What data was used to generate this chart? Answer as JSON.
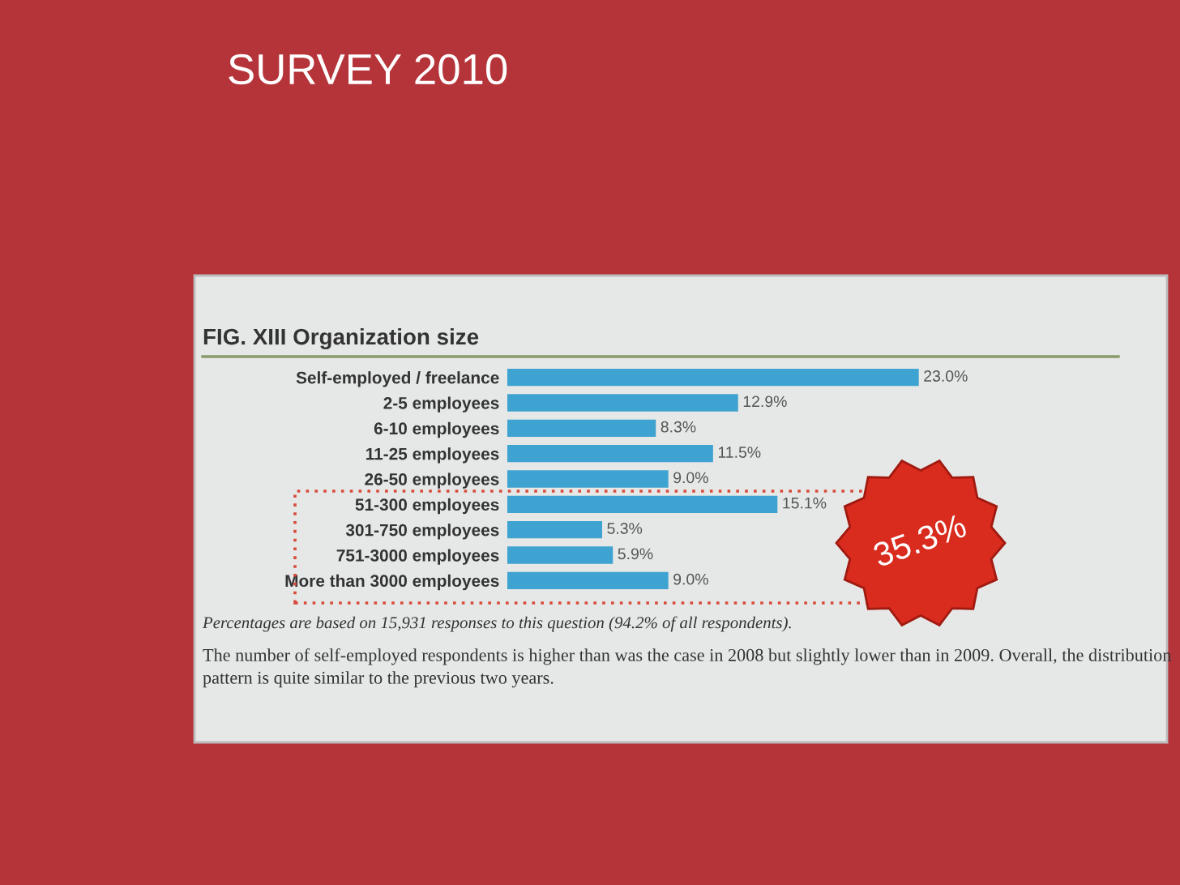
{
  "chart_data": {
    "type": "bar",
    "orientation": "horizontal",
    "title": "SURVEY 2010",
    "subtitle": "FIG. XIII Organization size",
    "categories": [
      "Self-employed / freelance",
      "2-5 employees",
      "6-10 employees",
      "11-25 employees",
      "26-50 employees",
      "51-300 employees",
      "301-750 employees",
      "751-3000 employees",
      "More than 3000 employees"
    ],
    "values": [
      23.0,
      12.9,
      8.3,
      11.5,
      9.0,
      15.1,
      5.3,
      5.9,
      9.0
    ],
    "value_labels": [
      "23.0%",
      "12.9%",
      "8.3%",
      "11.5%",
      "9.0%",
      "15.1%",
      "5.3%",
      "5.9%",
      "9.0%"
    ],
    "color": "#3ea3d0",
    "annotations": [
      "35.3%",
      "Percentages are based on 15,931 responses to this question (94.2% of all respondents).",
      "The number of self-employed respondents is higher than was the case in 2008 but slightly lower than in 2009. Overall, the distribution pattern is quite similar to the previous two years."
    ],
    "grid": false,
    "legend": false
  }
}
